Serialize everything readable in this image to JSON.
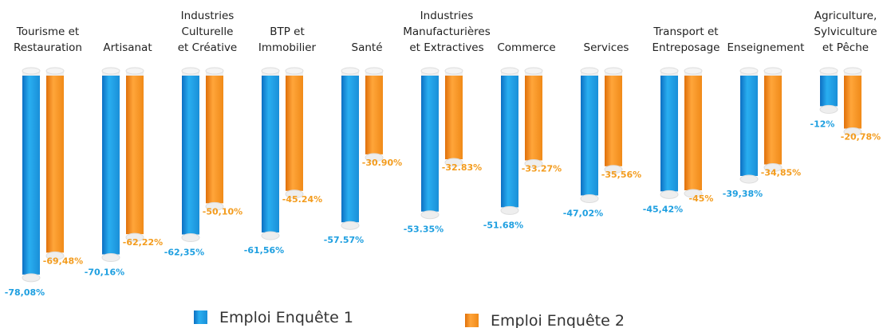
{
  "chart_data": {
    "type": "bar",
    "categories": [
      "Tourisme et\nRestauration",
      "Artisanat",
      "Industries\nCulturelle\net Créative",
      "BTP et\nImmobilier",
      "Santé",
      "Industries\nManufacturières\net Extractives",
      "Commerce",
      "Services",
      "Transport et\nEntreposage",
      "Enseignement",
      "Agriculture,\nSylviculture\net Pêche"
    ],
    "series": [
      {
        "name": "Emploi Enquête 1",
        "color": "#1e9fe0",
        "values": [
          -78.08,
          -70.16,
          -62.35,
          -61.56,
          -57.57,
          -53.35,
          -51.68,
          -47.02,
          -45.42,
          -39.38,
          -12
        ],
        "value_labels": [
          "-78,08%",
          "-70,16%",
          "-62,35%",
          "-61,56%",
          "-57.57%",
          "-53.35%",
          "-51.68%",
          "-47,02%",
          "-45,42%",
          "-39,38%",
          "-12%"
        ]
      },
      {
        "name": "Emploi Enquête 2",
        "color": "#f39c1e",
        "values": [
          -69.48,
          -62.22,
          -50.1,
          -45.24,
          -30.9,
          -32.83,
          -33.27,
          -35.56,
          -45,
          -34.85,
          -20.78
        ],
        "value_labels": [
          "-69,48%",
          "-62,22%",
          "-50,10%",
          "-45.24%",
          "-30.90%",
          "-32.83%",
          "-33.27%",
          "-35,56%",
          "-45%",
          "-34,85%",
          "-20,78%"
        ]
      }
    ],
    "ylim": [
      -80,
      0
    ]
  }
}
